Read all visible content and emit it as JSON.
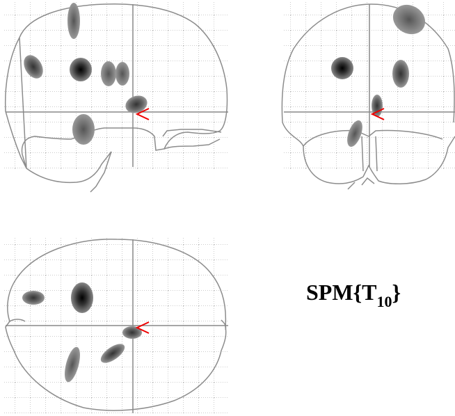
{
  "stat_label": {
    "prefix": "SPM{T",
    "subscript": "10",
    "suffix": "}"
  },
  "colors": {
    "grid": "#9a9a9a",
    "outline": "#8c8c8c",
    "crosshair": "#888888",
    "cursor": "#ee0000",
    "blob_light": "#7a7a7a",
    "blob_dark": "#000000"
  },
  "views": [
    "sagittal",
    "coronal",
    "axial"
  ]
}
